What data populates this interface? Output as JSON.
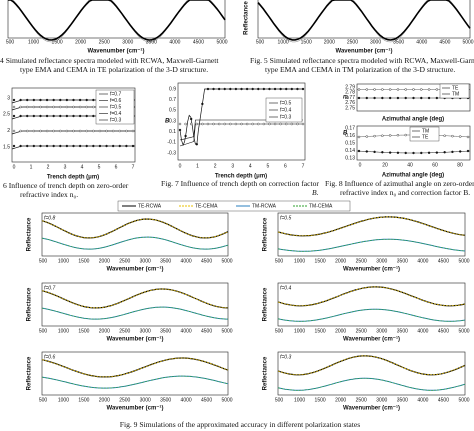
{
  "fig4": {
    "xticks": [
      "500",
      "1000",
      "1500",
      "2000",
      "2500",
      "3000",
      "3500",
      "4000",
      "4500",
      "5000"
    ],
    "xlabel": "Wavenumber (cm⁻¹)",
    "caption": [
      "4 Simulated reflectance spectra modeled with RCWA, Maxwell-Garnett",
      "type EMA and CEMA in TE polarization of the 3-D structure."
    ]
  },
  "fig5": {
    "ylabel": "Reflectance",
    "xticks": [
      "500",
      "1000",
      "1500",
      "2000",
      "2500",
      "3000",
      "3500",
      "4000",
      "4500",
      "5000"
    ],
    "xlabel": "Wavenumber (cm⁻¹)",
    "caption": [
      "Fig. 5 Simulated reflectance spectra modeled with RCWA, Maxwell-Garnet",
      "type EMA and CEMA in TM polarization of the 3-D structure."
    ]
  },
  "fig6": {
    "yticks": [
      "3",
      "2.5",
      "2",
      "1.5"
    ],
    "xticks": [
      "0",
      "1",
      "2",
      "3",
      "4",
      "5",
      "6",
      "7"
    ],
    "xlabel": "Trench depth (μm)",
    "legend": [
      "f=0.7",
      "f=0.6",
      "f=0.5",
      "f=0.4",
      "f=0.3"
    ],
    "caption": [
      "6 Influence of trench depth on zero-order",
      "refractive index n₀."
    ]
  },
  "fig7": {
    "ylabel": "B",
    "yticks": [
      "0.9",
      "0.7",
      "0.5",
      "0.3",
      "0.1",
      "-0.1",
      "-0.3"
    ],
    "xticks": [
      "0",
      "1",
      "2",
      "3",
      "4",
      "5",
      "6",
      "7"
    ],
    "xlabel": "Trench depth (μm)",
    "legend": [
      "f=0.5",
      "f=0.4",
      "f=0.3"
    ],
    "caption": [
      "Fig. 7  Influence of trench depth on correction factor",
      "B."
    ]
  },
  "fig8": {
    "top": {
      "ylabel": "n₀",
      "yticks": [
        "2.79",
        "2.78",
        "2.77",
        "2.76",
        "2.75"
      ],
      "legend": [
        "TE",
        "TM"
      ],
      "xlabel": "Azimuthal angle (deg)"
    },
    "bottom": {
      "ylabel": "B",
      "yticks": [
        "0.17",
        "0.16",
        "0.15",
        "0.14",
        "0.13"
      ],
      "legend": [
        "TM",
        "TE"
      ],
      "xticks": [
        "0",
        "20",
        "40",
        "60",
        "80"
      ],
      "xlabel": "Azimuthal angle (deg)"
    },
    "caption": [
      "Fig. 8 Influence of azimuthal angle on zero-order",
      "refractive index n₀ and correction factor B."
    ]
  },
  "fig9": {
    "legend": [
      "TE-RCWA",
      "TE-CEMA",
      "TM-RCWA",
      "TM-CEMA"
    ],
    "panels": [
      "f=0.8",
      "f=0.5",
      "f=0.7",
      "f=0.4",
      "f=0.6",
      "f=0.3"
    ],
    "ylabel": "Reflectance",
    "xticks": [
      "500",
      "1000",
      "1500",
      "2000",
      "2500",
      "3000",
      "3500",
      "4000",
      "4500",
      "5000"
    ],
    "xlabel": "Wavenumber (cm⁻¹)",
    "caption": "Fig. 9 Simulations of the approximated accuracy in different polarization states"
  }
}
